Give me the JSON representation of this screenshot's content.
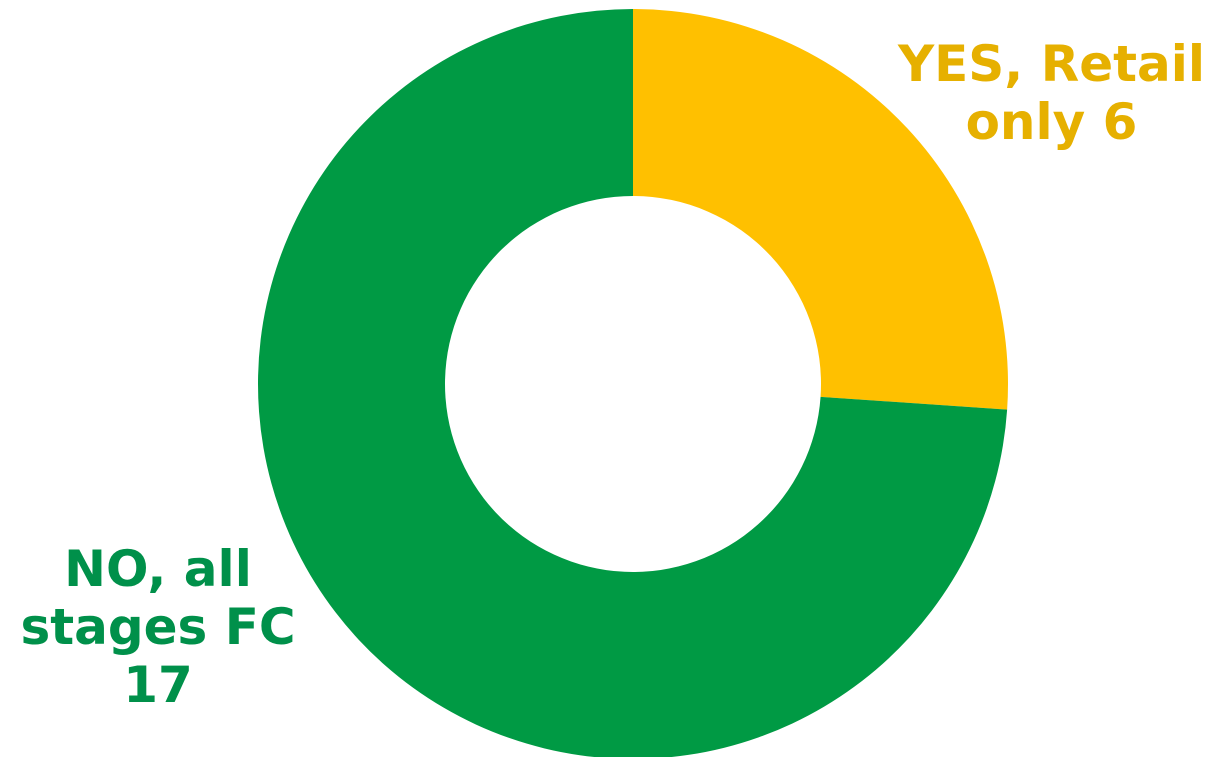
{
  "chart_data": {
    "type": "pie",
    "variant": "donut",
    "title": "",
    "legend": "none",
    "slices": [
      {
        "label": "YES, Retail only",
        "value": 6,
        "color": "#FFC000",
        "label_color": "#E6B000",
        "label_lines": [
          "YES, Retail",
          "only 6"
        ]
      },
      {
        "label": "NO, all stages FC",
        "value": 17,
        "color": "#009A44",
        "label_color": "#00904A",
        "label_lines": [
          "NO, all",
          "stages FC",
          "17"
        ]
      }
    ]
  }
}
